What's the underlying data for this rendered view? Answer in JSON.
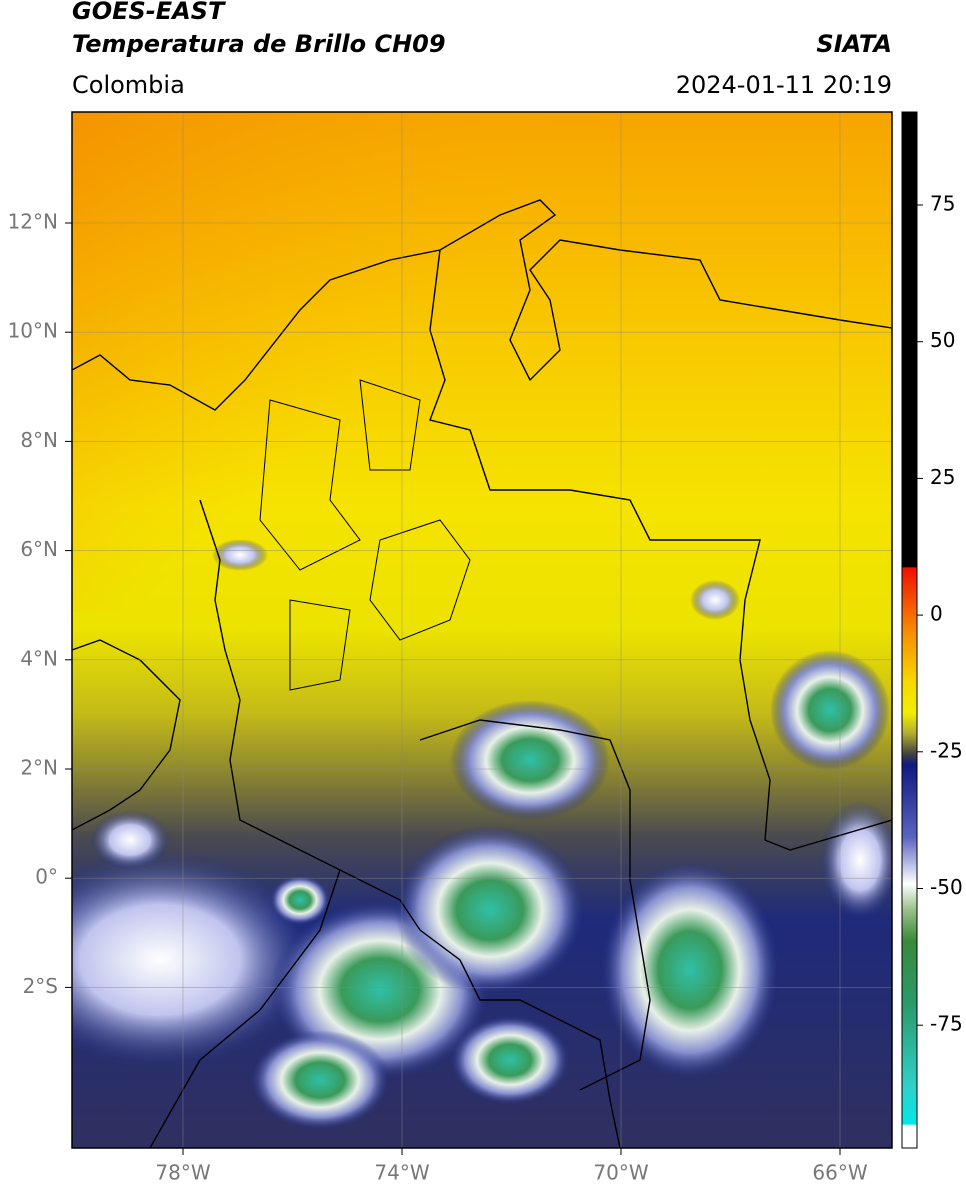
{
  "header": {
    "title": "GOES-EAST",
    "subtitle": "Temperatura de Brillo CH09",
    "region": "Colombia",
    "source": "SIATA",
    "datetime": "2024-01-11 20:19"
  },
  "map": {
    "lon_ticks": [
      "78°W",
      "74°W",
      "70°W",
      "66°W"
    ],
    "lat_ticks": [
      "12°N",
      "10°N",
      "8°N",
      "6°N",
      "4°N",
      "2°N",
      "0°",
      "2°S"
    ]
  },
  "colorbar": {
    "ticks": [
      "75",
      "50",
      "25",
      "0",
      "-25",
      "-50",
      "-75"
    ]
  }
}
